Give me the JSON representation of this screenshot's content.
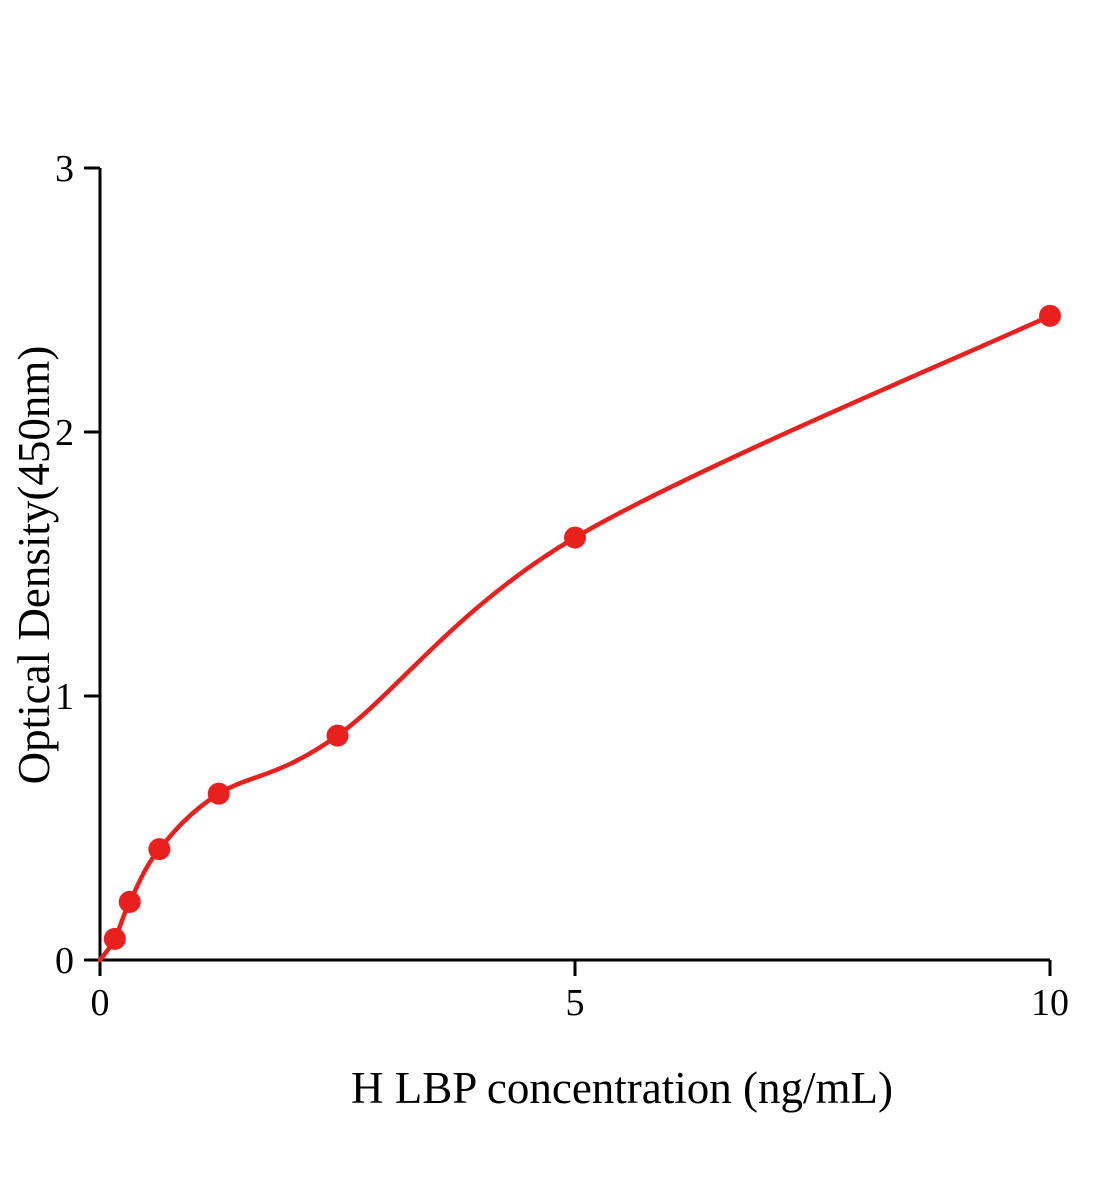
{
  "figure": {
    "background_color": "#ffffff"
  },
  "chart_data": {
    "type": "scatter",
    "title": "",
    "xlabel": "H LBP concentration (ng/mL)",
    "ylabel": "Optical Density(450nm)",
    "x": [
      0.156,
      0.313,
      0.625,
      1.25,
      2.5,
      5,
      10
    ],
    "y": [
      0.08,
      0.22,
      0.42,
      0.63,
      0.85,
      1.6,
      2.44
    ],
    "curve": "smooth power-law standard-curve fit through origin and data points",
    "xlim": [
      0,
      10
    ],
    "ylim": [
      0,
      3
    ],
    "xticks": [
      0,
      5,
      10
    ],
    "yticks": [
      0,
      1,
      2,
      3
    ],
    "grid": false,
    "legend": "none",
    "point_color": "#e8201e",
    "line_color": "#e8201e",
    "axis_color": "#000000"
  }
}
